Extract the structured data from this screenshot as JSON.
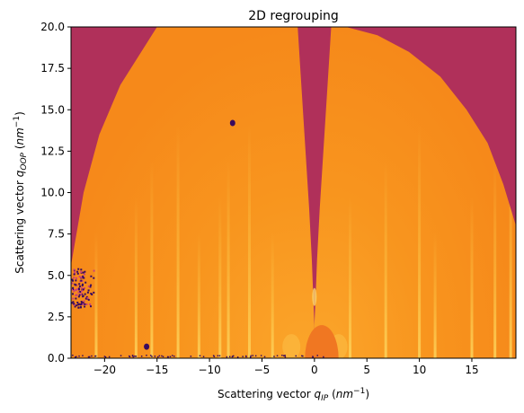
{
  "chart_data": {
    "type": "heatmap",
    "title": "2D regrouping",
    "xlabel": {
      "text": "Scattering vector ",
      "symbol": "q",
      "subscript": "IP",
      "unit_open": " (",
      "unit": "nm",
      "superscript": "−1",
      "unit_close": ")"
    },
    "ylabel": {
      "text": "Scattering vector ",
      "symbol": "q",
      "subscript": "OOP",
      "unit_open": " (",
      "unit": "nm",
      "superscript": "−1",
      "unit_close": ")"
    },
    "xlim": [
      -23.2,
      19.2
    ],
    "ylim": [
      0,
      20
    ],
    "x_ticks": [
      -20,
      -15,
      -10,
      -5,
      0,
      5,
      10,
      15
    ],
    "x_tick_labels": [
      "−20",
      "−15",
      "−10",
      "−5",
      "0",
      "5",
      "10",
      "15"
    ],
    "y_ticks": [
      0,
      2.5,
      5,
      7.5,
      10,
      12.5,
      15,
      17.5,
      20
    ],
    "y_tick_labels": [
      "0.0",
      "2.5",
      "5.0",
      "7.5",
      "10.0",
      "12.5",
      "15.0",
      "17.5",
      "20.0"
    ],
    "grid": false,
    "colormap": "inferno",
    "colors": {
      "background_masked": "#b0305a",
      "intensity_mid": "#f7921c",
      "intensity_high": "#fbb82e",
      "intensity_low": "#f5821a",
      "dead_pixels": "#3a0a5e"
    },
    "features": {
      "left_lobe_outline": [
        [
          -23.2,
          5.6
        ],
        [
          -22,
          10
        ],
        [
          -20.5,
          13.5
        ],
        [
          -18.5,
          16.5
        ],
        [
          -16,
          19
        ],
        [
          -15,
          20
        ],
        [
          -1.6,
          20
        ],
        [
          -1.4,
          18
        ],
        [
          -1.1,
          15
        ],
        [
          -0.8,
          12
        ],
        [
          -0.5,
          9
        ],
        [
          -0.25,
          6
        ],
        [
          -0.1,
          3.5
        ],
        [
          0,
          2
        ]
      ],
      "right_lobe_outline": [
        [
          0,
          2
        ],
        [
          0.1,
          3.5
        ],
        [
          0.25,
          6
        ],
        [
          0.5,
          9
        ],
        [
          0.8,
          12
        ],
        [
          1.1,
          15
        ],
        [
          1.4,
          18
        ],
        [
          1.6,
          20
        ],
        [
          3,
          20
        ],
        [
          6,
          19.5
        ],
        [
          9,
          18.5
        ],
        [
          12,
          17
        ],
        [
          14.5,
          15
        ],
        [
          16.5,
          13
        ],
        [
          18,
          10.5
        ],
        [
          19.2,
          8
        ]
      ],
      "beamstop_center": [
        0.7,
        0
      ],
      "beamstop_radius_x": 1.6,
      "beamstop_height": 2.0,
      "vertical_streaks_x": [
        -20.8,
        -17,
        -15.5,
        -13,
        -11,
        -9,
        -8.2,
        -6.2,
        -4,
        3.4,
        6.8,
        10,
        11.5,
        15,
        17.2,
        18.7
      ],
      "dead_spots": [
        [
          -7.8,
          14.2
        ],
        [
          -16,
          0.7
        ]
      ],
      "dead_patch": {
        "x0": -23.2,
        "x1": -20.8,
        "y0": 3.1,
        "y1": 5.5
      }
    }
  }
}
